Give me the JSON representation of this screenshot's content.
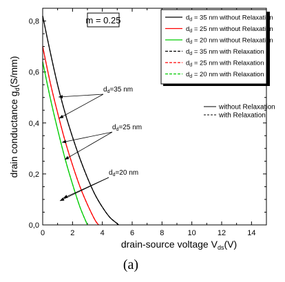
{
  "chart_data": {
    "type": "line",
    "xlabel": "drain-source voltage V",
    "xlabel_sub": "ds",
    "xlabel_unit": "(V)",
    "ylabel": "drain conductance g",
    "ylabel_sub": "d",
    "ylabel_unit": "(S/mm)",
    "xlim": [
      0,
      15
    ],
    "ylim": [
      0,
      0.85
    ],
    "xticks": [
      0,
      2,
      4,
      6,
      8,
      10,
      12,
      14
    ],
    "yticks": [
      0.0,
      0.2,
      0.4,
      0.6,
      0.8
    ],
    "ytick_labels": [
      "0,0",
      "0,2",
      "0,4",
      "0,6",
      "0,8"
    ],
    "param_label": "m = 0.25",
    "caption": "(a)",
    "legend": [
      {
        "sub": "d",
        "text": "= 35 nm without Relaxation",
        "color": "#000000",
        "dash": false
      },
      {
        "sub": "d",
        "text": "= 25 nm without Relaxation",
        "color": "#ff0000",
        "dash": false
      },
      {
        "sub": "d",
        "text": "= 20 nm without Relaxation",
        "color": "#00cc00",
        "dash": false
      },
      {
        "sub": "d",
        "text": "= 35 nm with Relaxation",
        "color": "#000000",
        "dash": true
      },
      {
        "sub": "d",
        "text": "= 25 nm with Relaxation",
        "color": "#ff0000",
        "dash": true
      },
      {
        "sub": "d",
        "text": "= 20 nm with Relaxation",
        "color": "#00cc00",
        "dash": true
      }
    ],
    "legend_prefix": "d",
    "legend2": [
      {
        "text": "without Relaxation",
        "dash": false
      },
      {
        "text": "with Relaxation",
        "dash": true
      }
    ],
    "annotations": [
      {
        "main": "d",
        "sub": "d",
        "text": "=35 nm"
      },
      {
        "main": "d",
        "sub": "d",
        "text": "=25 nm"
      },
      {
        "main": "d",
        "sub": "d",
        "text": "=20 nm"
      }
    ],
    "series": [
      {
        "color": "#000000",
        "x": [
          0,
          0.5,
          1.0,
          1.5,
          2.0,
          2.5,
          3.0,
          3.5,
          4.0,
          4.5,
          5.0,
          5.1
        ],
        "y": [
          0.82,
          0.68,
          0.55,
          0.44,
          0.345,
          0.26,
          0.185,
          0.12,
          0.07,
          0.03,
          0.005,
          0.0
        ]
      },
      {
        "color": "#ff0000",
        "x": [
          0,
          0.5,
          1.0,
          1.5,
          2.0,
          2.5,
          3.0,
          3.5,
          3.75
        ],
        "y": [
          0.7,
          0.56,
          0.44,
          0.33,
          0.235,
          0.15,
          0.08,
          0.02,
          0.0
        ]
      },
      {
        "color": "#00cc00",
        "x": [
          0,
          0.5,
          1.0,
          1.5,
          2.0,
          2.5,
          3.0
        ],
        "y": [
          0.64,
          0.5,
          0.375,
          0.26,
          0.16,
          0.07,
          0.0
        ]
      }
    ]
  }
}
